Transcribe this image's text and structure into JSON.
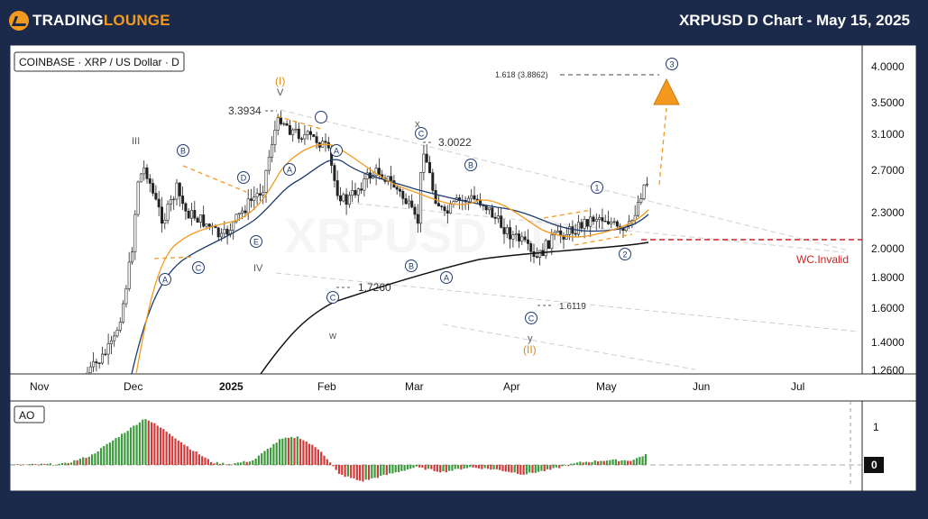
{
  "header": {
    "brand_left": "TRADING",
    "brand_right": "LOUNGE",
    "title": "XRPUSD D Chart - May 15, 2025"
  },
  "chart_data": {
    "type": "candlestick",
    "symbol_label": "COINBASE · XRP / US Dollar · D",
    "watermark": "XRPUSD · D",
    "x_ticks": [
      "Nov",
      "Dec",
      "2025",
      "Feb",
      "Mar",
      "Apr",
      "May",
      "Jun",
      "Jul"
    ],
    "y_ticks": [
      "4.0000",
      "3.5000",
      "3.1000",
      "2.7000",
      "2.3000",
      "2.0000",
      "1.8000",
      "1.6000",
      "1.4000",
      "1.2600"
    ],
    "y_scale": "log",
    "ylim": [
      1.2,
      4.3
    ],
    "price_labels": {
      "high": "3.3934",
      "x_level": "3.0022",
      "low_feb": "1.7260",
      "low_apr": "1.6119",
      "fib_target": "1.618 (3.8862)"
    },
    "invalidation_label": "WC.Invalid",
    "invalidation_level": 2.06,
    "wave_labels": {
      "I_orange": "(I)",
      "V": "V",
      "III": "III",
      "IV": "IV",
      "w": "w",
      "x": "x",
      "y": "y",
      "II_orange": "(II)",
      "A": "A",
      "B": "B",
      "C": "C",
      "D": "D",
      "E": "E",
      "one": "1",
      "two": "2",
      "three": "3"
    },
    "sma_fast_color": "#f39a1e",
    "sma_mid_color": "#1e3a6e",
    "sma_slow_color": "#111111",
    "up_color": "#3c9a3c",
    "down_color": "#d23a3a",
    "indicator": {
      "label": "AO",
      "y_ticks": [
        "1",
        "0"
      ]
    }
  }
}
